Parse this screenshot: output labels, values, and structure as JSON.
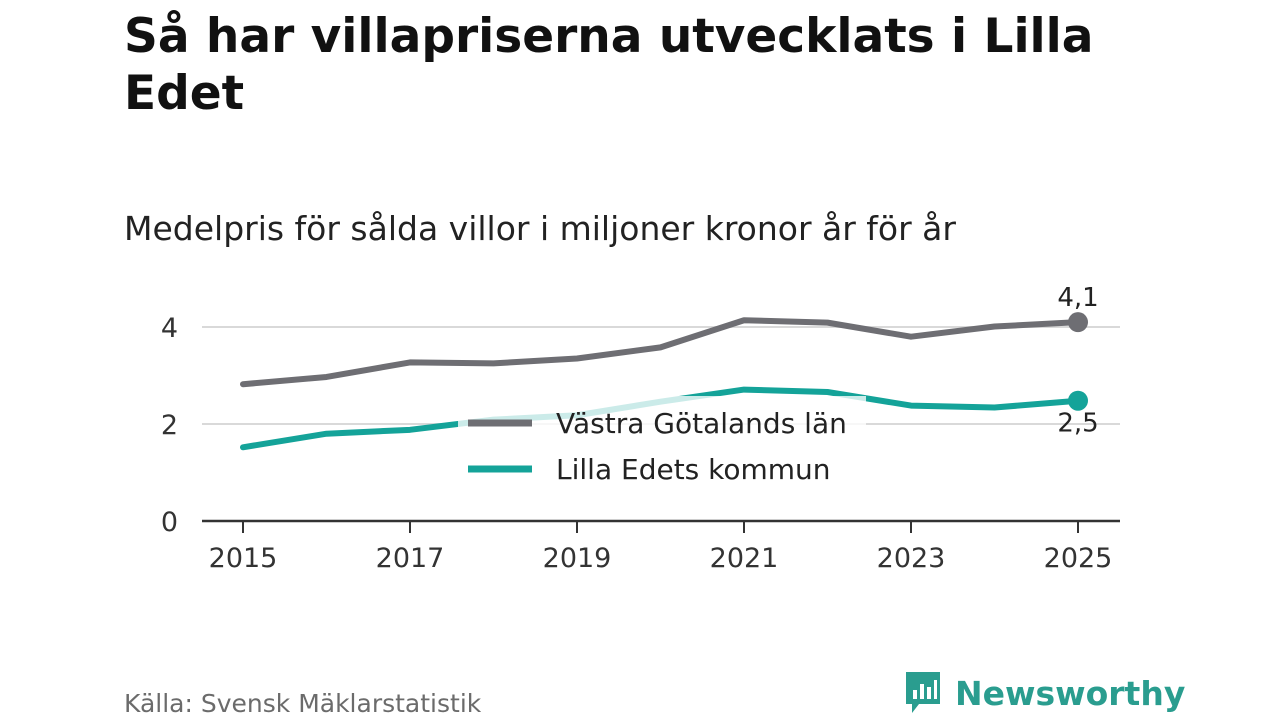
{
  "header": {
    "title": "Så har villapriserna utvecklats i Lilla Edet",
    "subtitle": "Medelpris för sålda villor i miljoner kronor år för år"
  },
  "footer": {
    "source": "Källa: Svensk Mäklarstatistik",
    "brand": "Newsworthy"
  },
  "colors": {
    "vgl": "#6e6e73",
    "lilla_edet": "#14a399",
    "grid": "#d9d9d9",
    "axis": "#333333",
    "brand": "#2a9d8f"
  },
  "chart_data": {
    "type": "line",
    "title": "Så har villapriserna utvecklats i Lilla Edet",
    "subtitle": "Medelpris för sålda villor i miljoner kronor år för år",
    "xlabel": "",
    "ylabel": "",
    "x": [
      2015,
      2016,
      2017,
      2018,
      2019,
      2020,
      2021,
      2022,
      2023,
      2024,
      2025
    ],
    "xticks": [
      "2015",
      "2017",
      "2019",
      "2021",
      "2023",
      "2025"
    ],
    "yticks": [
      "0",
      "2",
      "4"
    ],
    "ylim": [
      0,
      4.6
    ],
    "grid": true,
    "legend": "center",
    "series": [
      {
        "name": "Västra Götalands län",
        "color": "#6e6e73",
        "values": [
          2.82,
          2.97,
          3.27,
          3.25,
          3.35,
          3.58,
          4.14,
          4.09,
          3.8,
          4.01,
          4.1
        ],
        "end_label": "4,1"
      },
      {
        "name": "Lilla Edets kommun",
        "color": "#14a399",
        "values": [
          1.52,
          1.8,
          1.88,
          2.09,
          2.18,
          2.46,
          2.71,
          2.66,
          2.38,
          2.34,
          2.48
        ],
        "end_label": "2,5"
      }
    ]
  }
}
